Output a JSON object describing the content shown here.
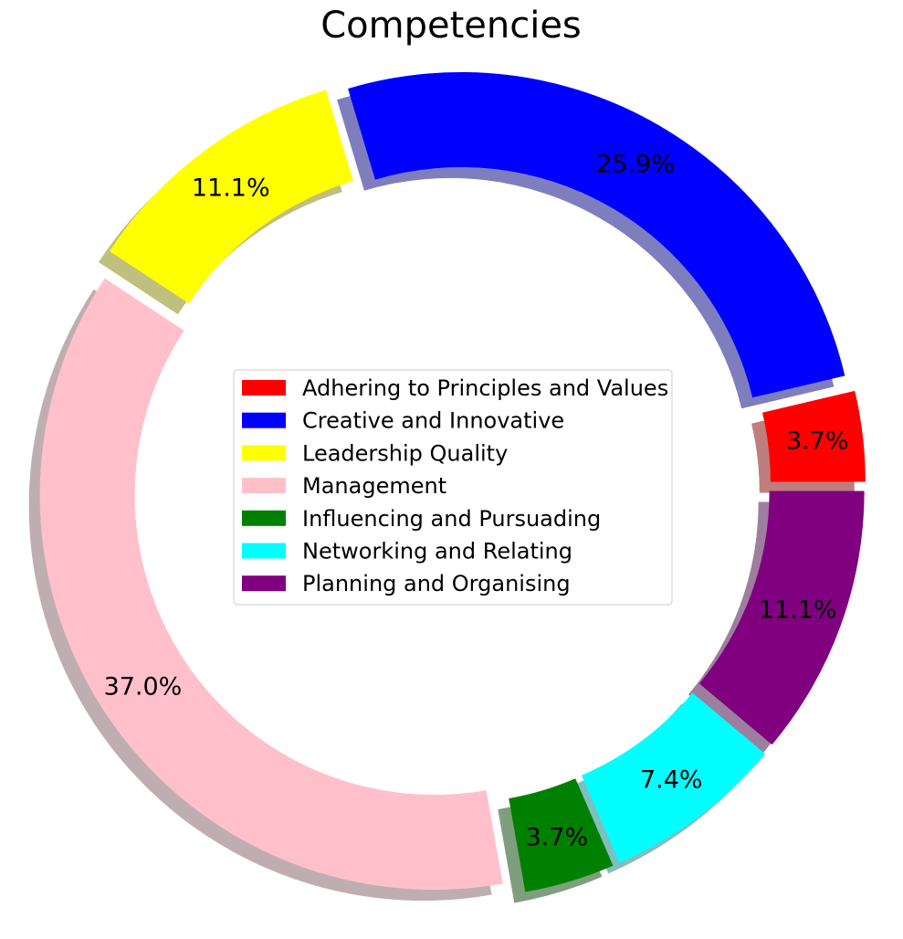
{
  "chart_data": {
    "type": "pie",
    "title": "Competencies",
    "donut": true,
    "shadow": true,
    "legend_position": "center",
    "start_angle_deg": 0,
    "direction": "counterclockwise",
    "slices": [
      {
        "label": "Adhering to Principles and Values",
        "value": 3.7,
        "pct_label": "3.7%",
        "color": "#ff0000"
      },
      {
        "label": "Creative and Innovative",
        "value": 25.9,
        "pct_label": "25.9%",
        "color": "#0000ff"
      },
      {
        "label": "Leadership Quality",
        "value": 11.1,
        "pct_label": "11.1%",
        "color": "#ffff00"
      },
      {
        "label": "Management",
        "value": 37.0,
        "pct_label": "37.0%",
        "color": "#ffc0cb"
      },
      {
        "label": "Influencing and Pursuading",
        "value": 3.7,
        "pct_label": "3.7%",
        "color": "#008000"
      },
      {
        "label": "Networking and Relating",
        "value": 7.4,
        "pct_label": "7.4%",
        "color": "#00ffff"
      },
      {
        "label": "Planning and Organising",
        "value": 11.1,
        "pct_label": "11.1%",
        "color": "#800080"
      }
    ]
  }
}
